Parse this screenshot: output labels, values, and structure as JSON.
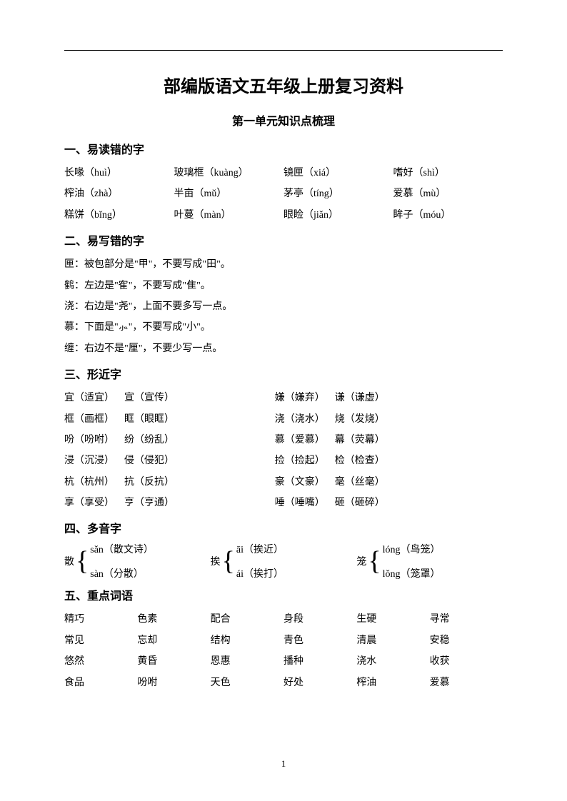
{
  "title": "部编版语文五年级上册复习资料",
  "subtitle": "第一单元知识点梳理",
  "section1": {
    "heading": "一、易读错的字",
    "rows": [
      [
        "长喙（huì）",
        "玻璃框（kuàng）",
        "镜匣（xiá）",
        "嗜好（shì）"
      ],
      [
        "榨油（zhà）",
        "半亩（mǔ）",
        "茅亭（tíng）",
        "爱慕（mù）"
      ],
      [
        "糕饼（bǐng）",
        "叶蔓（màn）",
        "眼睑（jiǎn）",
        "眸子（móu）"
      ]
    ]
  },
  "section2": {
    "heading": "二、易写错的字",
    "lines": [
      "匣：被包部分是\"甲\"，不要写成\"田\"。",
      "鹤：左边是\"隺\"，不要写成\"隹\"。",
      "浇：右边是\"尧\"，上面不要多写一点。",
      "慕：下面是\"⺗\"，不要写成\"小\"。",
      "缠：右边不是\"厘\"，不要少写一点。"
    ]
  },
  "section3": {
    "heading": "三、形近字",
    "rows": [
      [
        [
          "宜（适宜）",
          "宣（宣传）"
        ],
        [
          "嫌（嫌弃）",
          "谦（谦虚）"
        ]
      ],
      [
        [
          "框（画框）",
          "眶（眼眶）"
        ],
        [
          "浇（浇水）",
          "烧（发烧）"
        ]
      ],
      [
        [
          "吩（吩咐）",
          "纷（纷乱）"
        ],
        [
          "慕（爱慕）",
          "幕（荧幕）"
        ]
      ],
      [
        [
          "浸（沉浸）",
          "侵（侵犯）"
        ],
        [
          "捡（捡起）",
          "检（检查）"
        ]
      ],
      [
        [
          "杭（杭州）",
          "抗（反抗）"
        ],
        [
          "豪（文豪）",
          "毫（丝毫）"
        ]
      ],
      [
        [
          "享（享受）",
          "亨（亨通）"
        ],
        [
          "唾（唾嘴）",
          "砸（砸碎）"
        ]
      ]
    ]
  },
  "section4": {
    "heading": "四、多音字",
    "groups": [
      {
        "char": "散",
        "items": [
          "sǎn（散文诗）",
          "sàn（分散）"
        ]
      },
      {
        "char": "挨",
        "items": [
          "āi（挨近）",
          "ái（挨打）"
        ]
      },
      {
        "char": "笼",
        "items": [
          "lóng（鸟笼）",
          "lǒng（笼罩）"
        ]
      }
    ]
  },
  "section5": {
    "heading": "五、重点词语",
    "rows": [
      [
        "精巧",
        "色素",
        "配合",
        "身段",
        "生硬",
        "寻常"
      ],
      [
        "常见",
        "忘却",
        "结构",
        "青色",
        "清晨",
        "安稳"
      ],
      [
        "悠然",
        "黄昏",
        "恩惠",
        "播种",
        "浇水",
        "收获"
      ],
      [
        "食品",
        "吩咐",
        "天色",
        "好处",
        "榨油",
        "爱慕"
      ]
    ]
  },
  "page_number": "1"
}
